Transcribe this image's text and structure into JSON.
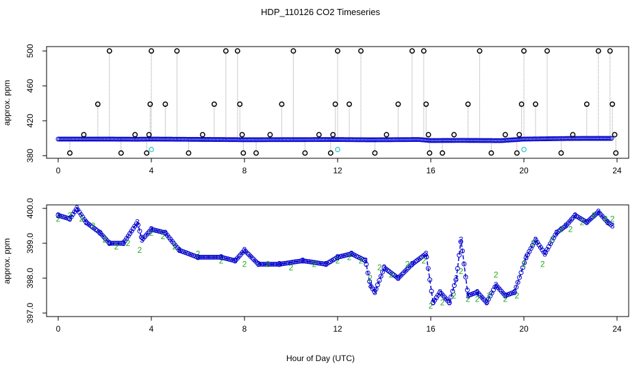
{
  "title": "HDP_110126  CO2 Timeseries",
  "xlabel": "Hour of Day (UTC)",
  "colors": {
    "axis": "#000000",
    "top_points": "#0000cc",
    "top_outliers": "#000000",
    "top_cyan": "#33cccc",
    "top_lines": "#999999",
    "bottom_series2": "#22aa22",
    "bottom_series3": "#0000cc",
    "bottom_line": "#0000cc"
  },
  "chart_data": [
    {
      "type": "scatter",
      "ylabel": "approx. ppm",
      "xlim": [
        -0.5,
        24.5
      ],
      "ylim": [
        377,
        505
      ],
      "xticks": [
        0,
        4,
        8,
        12,
        16,
        20,
        24
      ],
      "yticks": [
        380,
        420,
        460,
        500
      ],
      "baseline": [
        [
          0,
          399
        ],
        [
          2,
          399
        ],
        [
          3.4,
          398.8
        ],
        [
          4,
          399
        ],
        [
          8,
          398.3
        ],
        [
          12,
          398.5
        ],
        [
          13.4,
          398.2
        ],
        [
          15.5,
          398.5
        ],
        [
          16,
          397.3
        ],
        [
          17.3,
          397.5
        ],
        [
          19,
          397.2
        ],
        [
          20,
          399
        ],
        [
          22,
          399.7
        ],
        [
          24,
          399.8
        ]
      ],
      "outliers": [
        [
          0.5,
          383
        ],
        [
          1.1,
          404
        ],
        [
          1.7,
          439
        ],
        [
          2.2,
          500
        ],
        [
          2.7,
          383
        ],
        [
          3.3,
          404
        ],
        [
          3.8,
          383
        ],
        [
          3.9,
          404
        ],
        [
          3.95,
          439
        ],
        [
          4.0,
          500
        ],
        [
          4.6,
          439
        ],
        [
          5.1,
          500
        ],
        [
          5.6,
          383
        ],
        [
          6.2,
          404
        ],
        [
          6.7,
          439
        ],
        [
          7.2,
          500
        ],
        [
          7.7,
          500
        ],
        [
          7.8,
          439
        ],
        [
          7.9,
          404
        ],
        [
          7.95,
          383
        ],
        [
          8.5,
          383
        ],
        [
          9.1,
          404
        ],
        [
          9.6,
          439
        ],
        [
          10.1,
          500
        ],
        [
          10.6,
          383
        ],
        [
          11.2,
          404
        ],
        [
          11.7,
          383
        ],
        [
          11.8,
          404
        ],
        [
          11.9,
          439
        ],
        [
          12.0,
          500
        ],
        [
          12.5,
          439
        ],
        [
          13.0,
          500
        ],
        [
          13.6,
          383
        ],
        [
          14.1,
          404
        ],
        [
          14.6,
          439
        ],
        [
          15.2,
          500
        ],
        [
          15.7,
          500
        ],
        [
          15.8,
          439
        ],
        [
          15.9,
          404
        ],
        [
          15.95,
          383
        ],
        [
          16.5,
          383
        ],
        [
          17.0,
          404
        ],
        [
          17.6,
          439
        ],
        [
          18.1,
          500
        ],
        [
          18.6,
          383
        ],
        [
          19.2,
          404
        ],
        [
          19.7,
          383
        ],
        [
          19.8,
          404
        ],
        [
          19.9,
          439
        ],
        [
          20.0,
          500
        ],
        [
          20.5,
          439
        ],
        [
          21.0,
          500
        ],
        [
          21.6,
          383
        ],
        [
          22.1,
          404
        ],
        [
          22.7,
          439
        ],
        [
          23.2,
          500
        ],
        [
          23.7,
          500
        ],
        [
          23.8,
          439
        ],
        [
          23.9,
          404
        ],
        [
          23.95,
          383
        ]
      ],
      "cyan_points": [
        [
          4.0,
          387
        ],
        [
          12.0,
          387
        ],
        [
          20.0,
          387
        ]
      ]
    },
    {
      "type": "line",
      "ylabel": "approx. ppm",
      "xlim": [
        -0.5,
        24.5
      ],
      "ylim": [
        396.9,
        400.1
      ],
      "xticks": [
        0,
        4,
        8,
        12,
        16,
        20,
        24
      ],
      "yticks": [
        397.0,
        398.0,
        399.0,
        400.0
      ],
      "series": [
        {
          "name": "2",
          "marker": "2",
          "values": [
            [
              0,
              399.7
            ],
            [
              0.5,
              399.8
            ],
            [
              1,
              399.7
            ],
            [
              1.5,
              399.5
            ],
            [
              2,
              399.1
            ],
            [
              2.5,
              398.9
            ],
            [
              3,
              399.0
            ],
            [
              3.5,
              398.8
            ],
            [
              4,
              399.3
            ],
            [
              4.5,
              399.2
            ],
            [
              5,
              398.9
            ],
            [
              6,
              398.7
            ],
            [
              7,
              398.5
            ],
            [
              8,
              398.4
            ],
            [
              9,
              398.4
            ],
            [
              10,
              398.3
            ],
            [
              11,
              398.4
            ],
            [
              12,
              398.5
            ],
            [
              12.5,
              398.6
            ],
            [
              13,
              398.5
            ],
            [
              13.4,
              398.0
            ],
            [
              13.8,
              398.3
            ],
            [
              14.3,
              398.1
            ],
            [
              15,
              398.4
            ],
            [
              15.7,
              398.5
            ],
            [
              16,
              397.2
            ],
            [
              16.5,
              397.3
            ],
            [
              17,
              397.5
            ],
            [
              17.3,
              398.2
            ],
            [
              17.6,
              397.4
            ],
            [
              18,
              397.4
            ],
            [
              18.5,
              397.5
            ],
            [
              18.8,
              398.1
            ],
            [
              19.2,
              397.4
            ],
            [
              19.7,
              397.5
            ],
            [
              20,
              398.4
            ],
            [
              20.4,
              399.0
            ],
            [
              20.8,
              398.4
            ],
            [
              21.2,
              399.1
            ],
            [
              21.6,
              399.4
            ],
            [
              22,
              399.4
            ],
            [
              22.5,
              399.6
            ],
            [
              23,
              399.8
            ],
            [
              23.5,
              399.7
            ],
            [
              23.8,
              399.7
            ]
          ]
        },
        {
          "name": "3",
          "marker": "3",
          "values": [
            [
              0,
              399.8
            ],
            [
              0.5,
              399.7
            ],
            [
              0.8,
              400.0
            ],
            [
              1.2,
              399.6
            ],
            [
              1.8,
              399.3
            ],
            [
              2.2,
              399.0
            ],
            [
              2.8,
              399.0
            ],
            [
              3.4,
              399.6
            ],
            [
              3.6,
              399.1
            ],
            [
              4.0,
              399.4
            ],
            [
              4.6,
              399.3
            ],
            [
              5.2,
              398.8
            ],
            [
              6.0,
              398.6
            ],
            [
              7.0,
              398.6
            ],
            [
              7.6,
              398.5
            ],
            [
              8.0,
              398.8
            ],
            [
              8.6,
              398.4
            ],
            [
              9.5,
              398.4
            ],
            [
              10.5,
              398.5
            ],
            [
              11.5,
              398.4
            ],
            [
              12.0,
              398.6
            ],
            [
              12.6,
              398.7
            ],
            [
              13.2,
              398.5
            ],
            [
              13.4,
              397.8
            ],
            [
              13.6,
              397.6
            ],
            [
              14.0,
              398.3
            ],
            [
              14.6,
              398.0
            ],
            [
              15.2,
              398.4
            ],
            [
              15.8,
              398.7
            ],
            [
              16.1,
              397.3
            ],
            [
              16.4,
              397.6
            ],
            [
              16.8,
              397.3
            ],
            [
              17.1,
              398.0
            ],
            [
              17.3,
              399.1
            ],
            [
              17.6,
              397.5
            ],
            [
              18.0,
              397.6
            ],
            [
              18.4,
              397.3
            ],
            [
              18.8,
              397.8
            ],
            [
              19.2,
              397.5
            ],
            [
              19.6,
              397.6
            ],
            [
              20.1,
              398.6
            ],
            [
              20.5,
              399.1
            ],
            [
              20.9,
              398.7
            ],
            [
              21.4,
              399.3
            ],
            [
              21.8,
              399.5
            ],
            [
              22.2,
              399.8
            ],
            [
              22.7,
              399.6
            ],
            [
              23.2,
              399.9
            ],
            [
              23.6,
              399.6
            ],
            [
              23.8,
              399.5
            ]
          ]
        }
      ]
    }
  ]
}
